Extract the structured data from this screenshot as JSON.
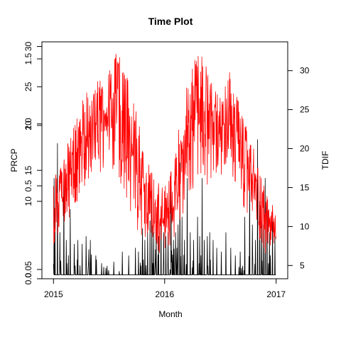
{
  "chart_data": {
    "type": "line",
    "title": "Time Plot",
    "xlabel": "Month",
    "ylabel_left": "PRCP",
    "ylabel_right": "TDIF",
    "x_ticks": [
      {
        "date": "2015-01-01",
        "label": "2015"
      },
      {
        "date": "2016-01-01",
        "label": "2016"
      },
      {
        "date": "2017-01-01",
        "label": "2017"
      }
    ],
    "xlim": [
      "2014-11-24",
      "2017-02-08"
    ],
    "left_tick_labels": [
      {
        "level": 0.0,
        "label": "0.0"
      },
      {
        "level": 0.12,
        "label": "0.05"
      },
      {
        "level": 1.0,
        "label": "10"
      },
      {
        "level": 1.2,
        "label": "0.5"
      },
      {
        "level": 1.4,
        "label": "15"
      },
      {
        "level": 1.98,
        "label": "20"
      },
      {
        "level": 2.0,
        "label": "1.0"
      },
      {
        "level": 2.48,
        "label": "25"
      },
      {
        "level": 2.84,
        "label": "1.5"
      },
      {
        "level": 3.0,
        "label": "30"
      }
    ],
    "left_ylim": [
      0,
      3.06
    ],
    "right_ticks": [
      5,
      10,
      15,
      20,
      25,
      30
    ],
    "right_ylim": [
      3.3,
      33.7
    ],
    "series": [
      {
        "name": "PRCP",
        "color": "#000000",
        "axis": "left",
        "baseline": 0.05,
        "peaks": [
          [
            "2015-01-03",
            1.3
          ],
          [
            "2015-01-06",
            0.7
          ],
          [
            "2015-01-14",
            1.75
          ],
          [
            "2015-01-22",
            0.6
          ],
          [
            "2015-02-04",
            1.35
          ],
          [
            "2015-02-12",
            0.5
          ],
          [
            "2015-02-25",
            0.9
          ],
          [
            "2015-03-10",
            0.45
          ],
          [
            "2015-03-22",
            0.5
          ],
          [
            "2015-04-05",
            0.45
          ],
          [
            "2015-04-18",
            0.55
          ],
          [
            "2015-05-02",
            0.5
          ],
          [
            "2015-05-20",
            0.3
          ],
          [
            "2015-06-08",
            0.2
          ],
          [
            "2015-07-18",
            0.22
          ],
          [
            "2015-08-15",
            0.35
          ],
          [
            "2015-09-05",
            0.3
          ],
          [
            "2015-09-27",
            0.4
          ],
          [
            "2015-10-07",
            0.35
          ],
          [
            "2015-10-20",
            0.65
          ],
          [
            "2015-10-28",
            0.5
          ],
          [
            "2015-11-06",
            0.6
          ],
          [
            "2015-11-14",
            0.75
          ],
          [
            "2015-11-20",
            1.15
          ],
          [
            "2015-11-26",
            0.6
          ],
          [
            "2015-12-04",
            0.7
          ],
          [
            "2015-12-12",
            0.55
          ],
          [
            "2015-12-20",
            0.9
          ],
          [
            "2015-12-29",
            0.6
          ],
          [
            "2016-01-05",
            0.55
          ],
          [
            "2016-01-12",
            0.6
          ],
          [
            "2016-01-22",
            1.2
          ],
          [
            "2016-01-30",
            0.5
          ],
          [
            "2016-02-06",
            0.6
          ],
          [
            "2016-02-14",
            0.7
          ],
          [
            "2016-02-20",
            1.5
          ],
          [
            "2016-02-27",
            0.8
          ],
          [
            "2016-03-06",
            0.5
          ],
          [
            "2016-03-15",
            1.3
          ],
          [
            "2016-03-25",
            0.6
          ],
          [
            "2016-04-05",
            0.5
          ],
          [
            "2016-04-18",
            0.8
          ],
          [
            "2016-04-25",
            0.55
          ],
          [
            "2016-05-03",
            1.3
          ],
          [
            "2016-05-10",
            0.5
          ],
          [
            "2016-05-20",
            0.55
          ],
          [
            "2016-05-28",
            0.6
          ],
          [
            "2016-06-08",
            0.5
          ],
          [
            "2016-06-20",
            0.4
          ],
          [
            "2016-07-05",
            0.35
          ],
          [
            "2016-07-20",
            0.6
          ],
          [
            "2016-08-05",
            0.4
          ],
          [
            "2016-08-20",
            0.3
          ],
          [
            "2016-09-05",
            0.35
          ],
          [
            "2016-09-20",
            0.8
          ],
          [
            "2016-10-06",
            1.4
          ],
          [
            "2016-10-15",
            0.7
          ],
          [
            "2016-10-25",
            0.5
          ],
          [
            "2016-11-01",
            1.8
          ],
          [
            "2016-11-08",
            1.0
          ],
          [
            "2016-11-14",
            0.75
          ],
          [
            "2016-11-20",
            0.7
          ],
          [
            "2016-11-26",
            1.3
          ],
          [
            "2016-12-02",
            1.0
          ],
          [
            "2016-12-10",
            0.6
          ],
          [
            "2016-12-20",
            0.75
          ],
          [
            "2016-12-28",
            0.55
          ]
        ]
      },
      {
        "name": "TDIF",
        "color": "#ff0000",
        "axis": "right",
        "envelope": [
          [
            "2015-01-01",
            6,
            16
          ],
          [
            "2015-02-01",
            7,
            19
          ],
          [
            "2015-03-01",
            9,
            22
          ],
          [
            "2015-04-01",
            12,
            26
          ],
          [
            "2015-05-01",
            13,
            28
          ],
          [
            "2015-06-01",
            14,
            29
          ],
          [
            "2015-07-01",
            14,
            30
          ],
          [
            "2015-08-01",
            12,
            33
          ],
          [
            "2015-09-01",
            10,
            29
          ],
          [
            "2015-10-01",
            7,
            25
          ],
          [
            "2015-11-01",
            6,
            19
          ],
          [
            "2015-12-01",
            5,
            16
          ],
          [
            "2016-01-01",
            5,
            15
          ],
          [
            "2016-02-01",
            6,
            19
          ],
          [
            "2016-03-01",
            8,
            26
          ],
          [
            "2016-04-01",
            11,
            32
          ],
          [
            "2016-05-01",
            12,
            32
          ],
          [
            "2016-06-01",
            13,
            29
          ],
          [
            "2016-07-01",
            15,
            27
          ],
          [
            "2016-08-01",
            13,
            30
          ],
          [
            "2016-09-01",
            10,
            26
          ],
          [
            "2016-10-01",
            8,
            22
          ],
          [
            "2016-11-01",
            6,
            19
          ],
          [
            "2016-12-01",
            5,
            14
          ],
          [
            "2017-01-01",
            5,
            12
          ]
        ]
      }
    ]
  }
}
